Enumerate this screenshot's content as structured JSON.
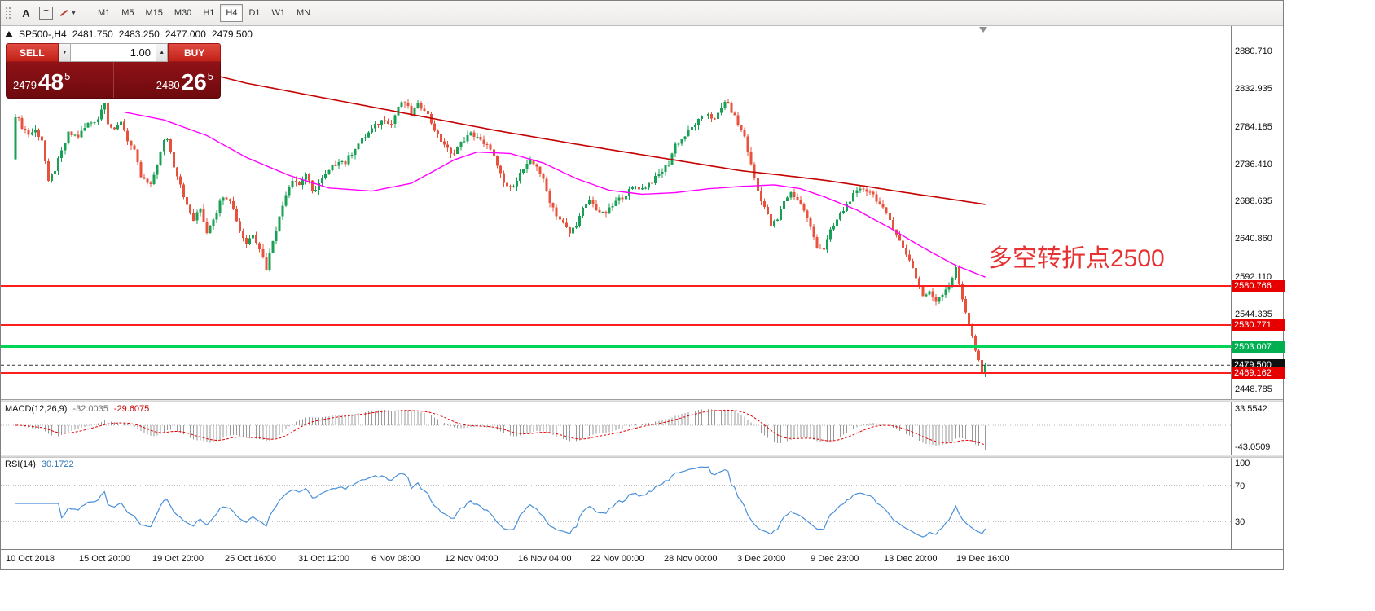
{
  "colors": {
    "up": "#18a055",
    "down": "#e8523c",
    "ma_red": "#c40000",
    "ma_magenta": "#ff00ff",
    "macd_hist": "#9a9a9a",
    "macd_signal": "#e00000",
    "rsi": "#4a90d9",
    "annotation": "#e63232"
  },
  "toolbar": {
    "text_tool": "A",
    "textbox_tool": "T",
    "timeframes": [
      "M1",
      "M5",
      "M15",
      "M30",
      "H1",
      "H4",
      "D1",
      "W1",
      "MN"
    ],
    "active_timeframe": "H4"
  },
  "icons": {
    "chevron_down": "▼",
    "spin_up": "▲",
    "spin_down": "▼"
  },
  "chart_header": {
    "symbol_period": "SP500-,H4",
    "open": "2481.750",
    "high": "2483.250",
    "low": "2477.000",
    "close": "2479.500"
  },
  "trade_panel": {
    "sell_label": "SELL",
    "buy_label": "BUY",
    "lot_size": "1.00",
    "bid_big": "2479",
    "bid_pips": "48",
    "bid_sup": "5",
    "ask_big": "2480",
    "ask_pips": "26",
    "ask_sup": "5"
  },
  "annotation": {
    "text": "多空转折点2500"
  },
  "price_axis": {
    "tags": [
      {
        "label": "2580.766",
        "price": 2580.766,
        "bg": "#e60000"
      },
      {
        "label": "2530.771",
        "price": 2530.771,
        "bg": "#e60000"
      },
      {
        "label": "2503.007",
        "price": 2503.007,
        "bg": "#00b050"
      },
      {
        "label": "2479.500",
        "price": 2479.5,
        "bg": "#101010"
      },
      {
        "label": "2469.162",
        "price": 2469.162,
        "bg": "#e60000"
      }
    ]
  },
  "macd_panel": {
    "label": "MACD(12,26,9)",
    "value_main": "-32.0035",
    "value_signal": "-29.6075",
    "axis_max": "33.5542",
    "axis_min": "-43.0509"
  },
  "rsi_panel": {
    "label": "RSI(14)",
    "value": "30.1722",
    "axis": [
      "100",
      "70",
      "30"
    ]
  },
  "time_axis": {
    "labels": [
      "10 Oct 2018",
      "15 Oct 20:00",
      "19 Oct 20:00",
      "25 Oct 16:00",
      "31 Oct 12:00",
      "6 Nov 08:00",
      "12 Nov 04:00",
      "16 Nov 04:00",
      "22 Nov 00:00",
      "28 Nov 00:00",
      "3 Dec 20:00",
      "9 Dec 23:00",
      "13 Dec 20:00",
      "19 Dec 16:00"
    ]
  },
  "chart_data": {
    "type": "candlestick",
    "symbol": "SP500-",
    "timeframe": "H4",
    "candle_count": 295,
    "price_range_top": 2913,
    "price_range_bottom": 2436,
    "y_ticks": [
      2880.71,
      2832.935,
      2784.185,
      2736.41,
      2688.635,
      2640.86,
      2592.11,
      2544.335,
      2448.785
    ],
    "hlines": [
      {
        "price": 2580.766,
        "color": "#ff1e1e",
        "width": 2
      },
      {
        "price": 2530.771,
        "color": "#ff1e1e",
        "width": 2
      },
      {
        "price": 2503.007,
        "color": "#00d45a",
        "width": 3
      },
      {
        "price": 2469.162,
        "color": "#ff1e1e",
        "width": 2
      }
    ],
    "price_line": {
      "price": 2479.5,
      "color": "#333333"
    },
    "close_waypoints": [
      [
        0,
        2800
      ],
      [
        2,
        2785
      ],
      [
        4,
        2775
      ],
      [
        6,
        2780
      ],
      [
        8,
        2768
      ],
      [
        10,
        2712
      ],
      [
        12,
        2730
      ],
      [
        14,
        2752
      ],
      [
        16,
        2775
      ],
      [
        19,
        2772
      ],
      [
        22,
        2788
      ],
      [
        25,
        2795
      ],
      [
        27,
        2818
      ],
      [
        28,
        2790
      ],
      [
        30,
        2778
      ],
      [
        32,
        2792
      ],
      [
        34,
        2768
      ],
      [
        36,
        2752
      ],
      [
        38,
        2720
      ],
      [
        41,
        2708
      ],
      [
        43,
        2738
      ],
      [
        45,
        2765
      ],
      [
        46,
        2770
      ],
      [
        48,
        2735
      ],
      [
        50,
        2712
      ],
      [
        52,
        2682
      ],
      [
        54,
        2665
      ],
      [
        56,
        2680
      ],
      [
        58,
        2650
      ],
      [
        60,
        2668
      ],
      [
        63,
        2697
      ],
      [
        65,
        2692
      ],
      [
        68,
        2652
      ],
      [
        70,
        2635
      ],
      [
        72,
        2648
      ],
      [
        74,
        2630
      ],
      [
        76,
        2604
      ],
      [
        78,
        2640
      ],
      [
        80,
        2668
      ],
      [
        82,
        2700
      ],
      [
        84,
        2718
      ],
      [
        86,
        2710
      ],
      [
        88,
        2725
      ],
      [
        90,
        2700
      ],
      [
        92,
        2712
      ],
      [
        94,
        2722
      ],
      [
        96,
        2732
      ],
      [
        98,
        2742
      ],
      [
        100,
        2738
      ],
      [
        103,
        2758
      ],
      [
        106,
        2772
      ],
      [
        109,
        2785
      ],
      [
        112,
        2795
      ],
      [
        114,
        2788
      ],
      [
        116,
        2810
      ],
      [
        118,
        2815
      ],
      [
        120,
        2800
      ],
      [
        122,
        2812
      ],
      [
        124,
        2808
      ],
      [
        126,
        2790
      ],
      [
        128,
        2772
      ],
      [
        130,
        2762
      ],
      [
        132,
        2748
      ],
      [
        134,
        2758
      ],
      [
        136,
        2768
      ],
      [
        138,
        2775
      ],
      [
        140,
        2772
      ],
      [
        142,
        2760
      ],
      [
        144,
        2758
      ],
      [
        146,
        2732
      ],
      [
        148,
        2712
      ],
      [
        150,
        2705
      ],
      [
        152,
        2718
      ],
      [
        154,
        2730
      ],
      [
        156,
        2738
      ],
      [
        158,
        2735
      ],
      [
        160,
        2715
      ],
      [
        162,
        2690
      ],
      [
        164,
        2672
      ],
      [
        166,
        2660
      ],
      [
        168,
        2648
      ],
      [
        170,
        2660
      ],
      [
        172,
        2678
      ],
      [
        174,
        2690
      ],
      [
        176,
        2680
      ],
      [
        178,
        2672
      ],
      [
        180,
        2678
      ],
      [
        182,
        2688
      ],
      [
        184,
        2695
      ],
      [
        186,
        2702
      ],
      [
        188,
        2708
      ],
      [
        190,
        2705
      ],
      [
        192,
        2712
      ],
      [
        194,
        2718
      ],
      [
        196,
        2728
      ],
      [
        198,
        2738
      ],
      [
        200,
        2762
      ],
      [
        202,
        2768
      ],
      [
        204,
        2778
      ],
      [
        206,
        2788
      ],
      [
        208,
        2795
      ],
      [
        210,
        2802
      ],
      [
        212,
        2792
      ],
      [
        214,
        2808
      ],
      [
        215,
        2818
      ],
      [
        217,
        2805
      ],
      [
        219,
        2788
      ],
      [
        221,
        2772
      ],
      [
        223,
        2735
      ],
      [
        225,
        2702
      ],
      [
        227,
        2682
      ],
      [
        229,
        2658
      ],
      [
        231,
        2665
      ],
      [
        233,
        2690
      ],
      [
        235,
        2700
      ],
      [
        237,
        2692
      ],
      [
        239,
        2678
      ],
      [
        241,
        2655
      ],
      [
        243,
        2632
      ],
      [
        245,
        2628
      ],
      [
        247,
        2650
      ],
      [
        249,
        2665
      ],
      [
        251,
        2678
      ],
      [
        253,
        2692
      ],
      [
        255,
        2700
      ],
      [
        257,
        2705
      ],
      [
        259,
        2702
      ],
      [
        261,
        2692
      ],
      [
        263,
        2678
      ],
      [
        265,
        2665
      ],
      [
        267,
        2648
      ],
      [
        269,
        2628
      ],
      [
        271,
        2615
      ],
      [
        273,
        2592
      ],
      [
        275,
        2568
      ],
      [
        277,
        2572
      ],
      [
        279,
        2562
      ],
      [
        281,
        2572
      ],
      [
        283,
        2582
      ],
      [
        285,
        2602
      ],
      [
        287,
        2565
      ],
      [
        289,
        2532
      ],
      [
        291,
        2498
      ],
      [
        293,
        2468
      ],
      [
        294,
        2480
      ]
    ],
    "ma_red_waypoints": [
      [
        53,
        2858
      ],
      [
        70,
        2840
      ],
      [
        95,
        2820
      ],
      [
        120,
        2800
      ],
      [
        145,
        2780
      ],
      [
        170,
        2762
      ],
      [
        195,
        2745
      ],
      [
        220,
        2728
      ],
      [
        233,
        2722
      ],
      [
        245,
        2716
      ],
      [
        258,
        2708
      ],
      [
        270,
        2700
      ],
      [
        283,
        2692
      ],
      [
        294,
        2685
      ]
    ],
    "ma_magenta_waypoints": [
      [
        33,
        2803
      ],
      [
        45,
        2793
      ],
      [
        58,
        2773
      ],
      [
        70,
        2745
      ],
      [
        83,
        2722
      ],
      [
        95,
        2706
      ],
      [
        108,
        2702
      ],
      [
        120,
        2712
      ],
      [
        133,
        2742
      ],
      [
        140,
        2752
      ],
      [
        150,
        2750
      ],
      [
        160,
        2738
      ],
      [
        170,
        2718
      ],
      [
        180,
        2703
      ],
      [
        190,
        2698
      ],
      [
        200,
        2700
      ],
      [
        210,
        2705
      ],
      [
        220,
        2708
      ],
      [
        230,
        2710
      ],
      [
        238,
        2705
      ],
      [
        245,
        2695
      ],
      [
        255,
        2678
      ],
      [
        265,
        2655
      ],
      [
        275,
        2630
      ],
      [
        285,
        2607
      ],
      [
        294,
        2592
      ]
    ]
  }
}
